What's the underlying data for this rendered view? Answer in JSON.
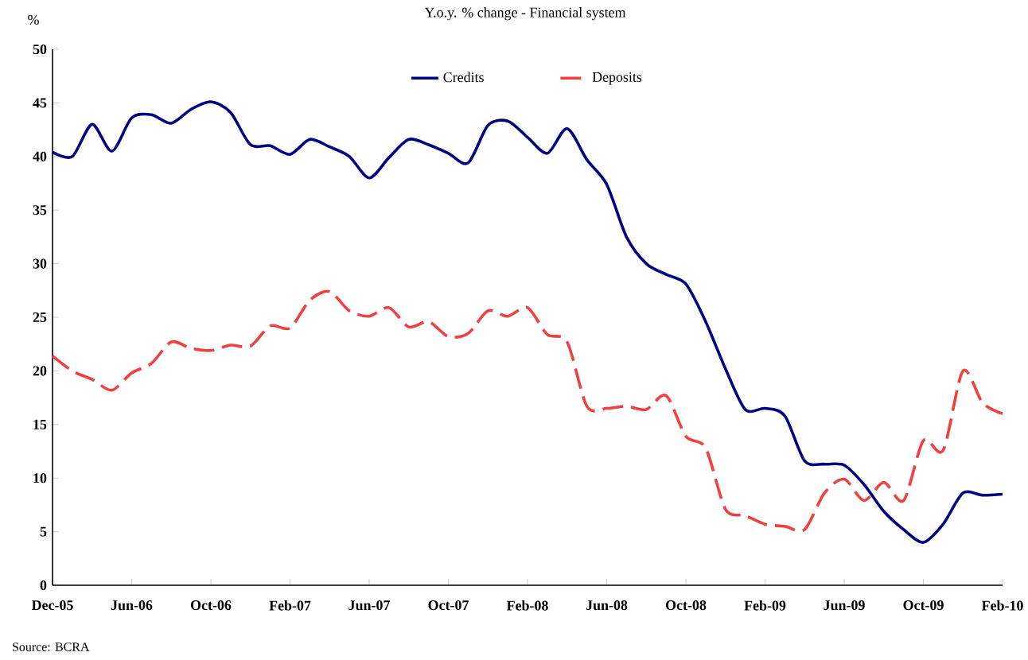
{
  "chart_data": {
    "type": "line",
    "title": "Y.o.y. % change - Financial system",
    "ylabel": "%",
    "annotations": [
      "Source: BCRA"
    ],
    "categories": [
      "Dec-05",
      null,
      null,
      null,
      "Jun-06",
      null,
      null,
      null,
      "Oct-06",
      null,
      null,
      null,
      "Feb-07",
      null,
      null,
      null,
      "Jun-07",
      null,
      null,
      null,
      "Oct-07",
      null,
      null,
      null,
      "Feb-08",
      null,
      null,
      null,
      "Jun-08",
      null,
      null,
      null,
      "Oct-08",
      null,
      null,
      null,
      "Feb-09",
      null,
      null,
      null,
      "Jun-09",
      null,
      null,
      null,
      "Oct-09",
      null,
      null,
      null,
      "Feb-10"
    ],
    "series": [
      {
        "name": "Credits",
        "color": "#000080",
        "line_style": "solid",
        "values": [
          40.4,
          40.0,
          43.0,
          40.5,
          43.6,
          43.9,
          43.1,
          44.4,
          45.1,
          44.1,
          41.1,
          41.0,
          40.2,
          41.6,
          40.9,
          40.0,
          38.0,
          39.9,
          41.6,
          41.1,
          40.3,
          39.4,
          42.9,
          43.3,
          41.8,
          40.3,
          42.6,
          39.7,
          37.4,
          32.5,
          30.0,
          29.0,
          28.1,
          24.6,
          20.2,
          16.4,
          16.5,
          15.8,
          11.6,
          11.3,
          11.2,
          9.4,
          6.9,
          5.2,
          4.0,
          5.7,
          8.6,
          8.4,
          8.5
        ]
      },
      {
        "name": "Deposits",
        "color": "#f04040",
        "line_style": "dashed",
        "values": [
          21.4,
          20.0,
          19.2,
          18.2,
          19.8,
          20.7,
          22.7,
          22.1,
          21.9,
          22.4,
          22.3,
          24.2,
          24.0,
          26.6,
          27.4,
          25.6,
          25.1,
          25.9,
          24.1,
          24.6,
          23.2,
          23.5,
          25.6,
          25.1,
          25.9,
          23.4,
          22.7,
          16.7,
          16.5,
          16.7,
          16.4,
          17.7,
          13.9,
          12.8,
          7.1,
          6.5,
          5.7,
          5.5,
          5.2,
          8.6,
          9.9,
          7.9,
          9.6,
          7.9,
          13.5,
          12.6,
          20.0,
          17.0,
          16.0
        ]
      }
    ],
    "ylim": [
      0,
      50
    ],
    "yticks": [
      0,
      5,
      10,
      15,
      20,
      25,
      30,
      35,
      40,
      45,
      50
    ],
    "grid": false,
    "legend": "top",
    "marker": "none"
  }
}
